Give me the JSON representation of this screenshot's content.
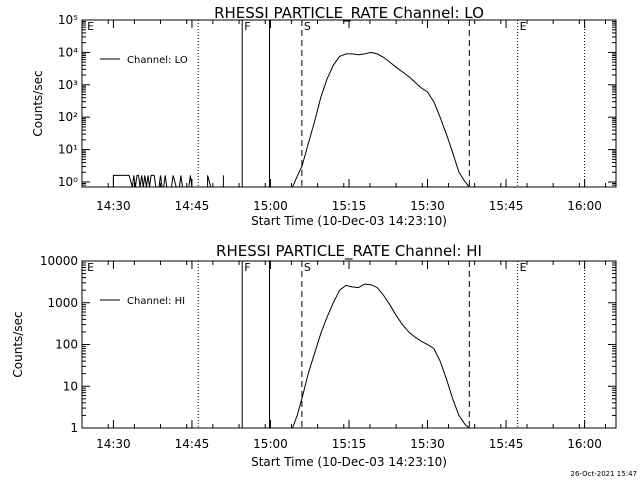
{
  "page": {
    "timestamp": "26-Oct-2021 15:47",
    "colors": {
      "background": "#ffffff",
      "ink": "#000000"
    }
  },
  "chart_data": [
    {
      "type": "line",
      "title": "RHESSI PARTICLE_RATE Channel: LO",
      "xlabel": "Start Time (10-Dec-03 14:23:10)",
      "ylabel": "Counts/sec",
      "yscale": "log",
      "xlim": [
        14.4,
        16.1
      ],
      "ylim": [
        0.7,
        100000
      ],
      "x_ticks": [
        {
          "value": 14.5,
          "label": "14:30"
        },
        {
          "value": 14.75,
          "label": "14:45"
        },
        {
          "value": 15.0,
          "label": "15:00"
        },
        {
          "value": 15.25,
          "label": "15:15"
        },
        {
          "value": 15.5,
          "label": "15:30"
        },
        {
          "value": 15.75,
          "label": "15:45"
        },
        {
          "value": 16.0,
          "label": "16:00"
        }
      ],
      "y_ticks": [
        {
          "value": 1,
          "label": "10⁰"
        },
        {
          "value": 10,
          "label": "10¹"
        },
        {
          "value": 100,
          "label": "10²"
        },
        {
          "value": 1000,
          "label": "10³"
        },
        {
          "value": 10000,
          "label": "10⁴"
        },
        {
          "value": 100000,
          "label": "10⁵"
        }
      ],
      "legend": {
        "label": "Channel: LO",
        "position": "top-left"
      },
      "markers": [
        {
          "label": "E",
          "x": 14.41,
          "style": "none"
        },
        {
          "label": "",
          "x": 14.77,
          "style": "dotted"
        },
        {
          "label": "F",
          "x": 14.91,
          "style": "solid"
        },
        {
          "label": "",
          "x": 14.997,
          "style": "solid"
        },
        {
          "label": "S",
          "x": 15.1,
          "style": "dashed"
        },
        {
          "label": "",
          "x": 15.633,
          "style": "dashed"
        },
        {
          "label": "E",
          "x": 15.787,
          "style": "dotted"
        },
        {
          "label": "",
          "x": 16.0,
          "style": "dotted"
        }
      ],
      "series": [
        {
          "name": "Channel: LO",
          "segments": [
            {
              "x": [
                14.5,
                14.5,
                14.525,
                14.55,
                14.56,
                14.565,
                14.57,
                14.575,
                14.58,
                14.585,
                14.59,
                14.595,
                14.6,
                14.605,
                14.61,
                14.615,
                14.62,
                14.625,
                14.63,
                14.635,
                14.64,
                14.645,
                14.65,
                14.655,
                14.66,
                14.665,
                14.67,
                14.675,
                14.68,
                14.685,
                14.69,
                14.7,
                14.705,
                14.71,
                14.715,
                14.72,
                14.73,
                14.74,
                14.745,
                14.75,
                14.755,
                14.76,
                14.77,
                14.78,
                14.79,
                14.8,
                14.8,
                14.81,
                14.815,
                14.82,
                14.83,
                14.84,
                14.85,
                14.85
              ],
              "y": [
                0.7,
                1.6,
                1.6,
                1.6,
                0.7,
                1.6,
                0.7,
                1.6,
                1.6,
                0.7,
                1.6,
                0.7,
                1.6,
                0.7,
                1.6,
                0.7,
                1.6,
                1.6,
                1.6,
                0.7,
                0.7,
                0.7,
                1.6,
                0.7,
                0.7,
                1.6,
                0.7,
                0.7,
                0.7,
                0.7,
                1.6,
                0.7,
                0.7,
                0.7,
                1.6,
                0.7,
                0.7,
                0.7,
                1.6,
                0.7,
                0.7,
                0.7,
                0.7,
                0.7,
                0.7,
                0.7,
                1.6,
                0.7,
                0.7,
                0.7,
                0.7,
                0.7,
                0.7,
                1.6
              ]
            },
            {
              "x": [
                15.07,
                15.085,
                15.1,
                15.12,
                15.14,
                15.16,
                15.18,
                15.2,
                15.22,
                15.24,
                15.26,
                15.28,
                15.3,
                15.32,
                15.34,
                15.36,
                15.38,
                15.4,
                15.42,
                15.44,
                15.46,
                15.48,
                15.5,
                15.52,
                15.54,
                15.56,
                15.58,
                15.6,
                15.62,
                15.633
              ],
              "y": [
                0.7,
                1.5,
                3,
                15,
                70,
                400,
                1500,
                4000,
                7500,
                9000,
                9000,
                8500,
                9000,
                10000,
                9000,
                7000,
                5000,
                3500,
                2500,
                1800,
                1200,
                800,
                600,
                300,
                100,
                30,
                8,
                2,
                1,
                0.7
              ]
            }
          ]
        }
      ]
    },
    {
      "type": "line",
      "title": "RHESSI PARTICLE_RATE Channel: HI",
      "xlabel": "Start Time (10-Dec-03 14:23:10)",
      "ylabel": "Counts/sec",
      "yscale": "log",
      "xlim": [
        14.4,
        16.1
      ],
      "ylim": [
        1,
        10000
      ],
      "x_ticks": [
        {
          "value": 14.5,
          "label": "14:30"
        },
        {
          "value": 14.75,
          "label": "14:45"
        },
        {
          "value": 15.0,
          "label": "15:00"
        },
        {
          "value": 15.25,
          "label": "15:15"
        },
        {
          "value": 15.5,
          "label": "15:30"
        },
        {
          "value": 15.75,
          "label": "15:45"
        },
        {
          "value": 16.0,
          "label": "16:00"
        }
      ],
      "y_ticks": [
        {
          "value": 1,
          "label": "1"
        },
        {
          "value": 10,
          "label": "10"
        },
        {
          "value": 100,
          "label": "100"
        },
        {
          "value": 1000,
          "label": "1000"
        },
        {
          "value": 10000,
          "label": "10000"
        }
      ],
      "legend": {
        "label": "Channel: HI",
        "position": "top-left"
      },
      "markers": [
        {
          "label": "E",
          "x": 14.41,
          "style": "none"
        },
        {
          "label": "",
          "x": 14.77,
          "style": "dotted"
        },
        {
          "label": "F",
          "x": 14.91,
          "style": "solid"
        },
        {
          "label": "",
          "x": 14.997,
          "style": "solid"
        },
        {
          "label": "S",
          "x": 15.1,
          "style": "dashed"
        },
        {
          "label": "",
          "x": 15.633,
          "style": "dashed"
        },
        {
          "label": "E",
          "x": 15.787,
          "style": "dotted"
        },
        {
          "label": "",
          "x": 16.0,
          "style": "dotted"
        }
      ],
      "series": [
        {
          "name": "Channel: HI",
          "segments": [
            {
              "x": [
                15.07,
                15.085,
                15.1,
                15.12,
                15.14,
                15.16,
                15.18,
                15.2,
                15.22,
                15.24,
                15.26,
                15.28,
                15.3,
                15.32,
                15.34,
                15.36,
                15.38,
                15.4,
                15.42,
                15.44,
                15.46,
                15.48,
                15.5,
                15.52,
                15.54,
                15.56,
                15.58,
                15.6,
                15.62,
                15.633
              ],
              "y": [
                1,
                2,
                5,
                20,
                60,
                180,
                450,
                1000,
                2000,
                2600,
                2400,
                2300,
                2800,
                2700,
                2300,
                1500,
                900,
                500,
                300,
                200,
                150,
                120,
                100,
                80,
                40,
                15,
                5,
                2,
                1.2,
                1
              ]
            }
          ]
        }
      ]
    }
  ]
}
